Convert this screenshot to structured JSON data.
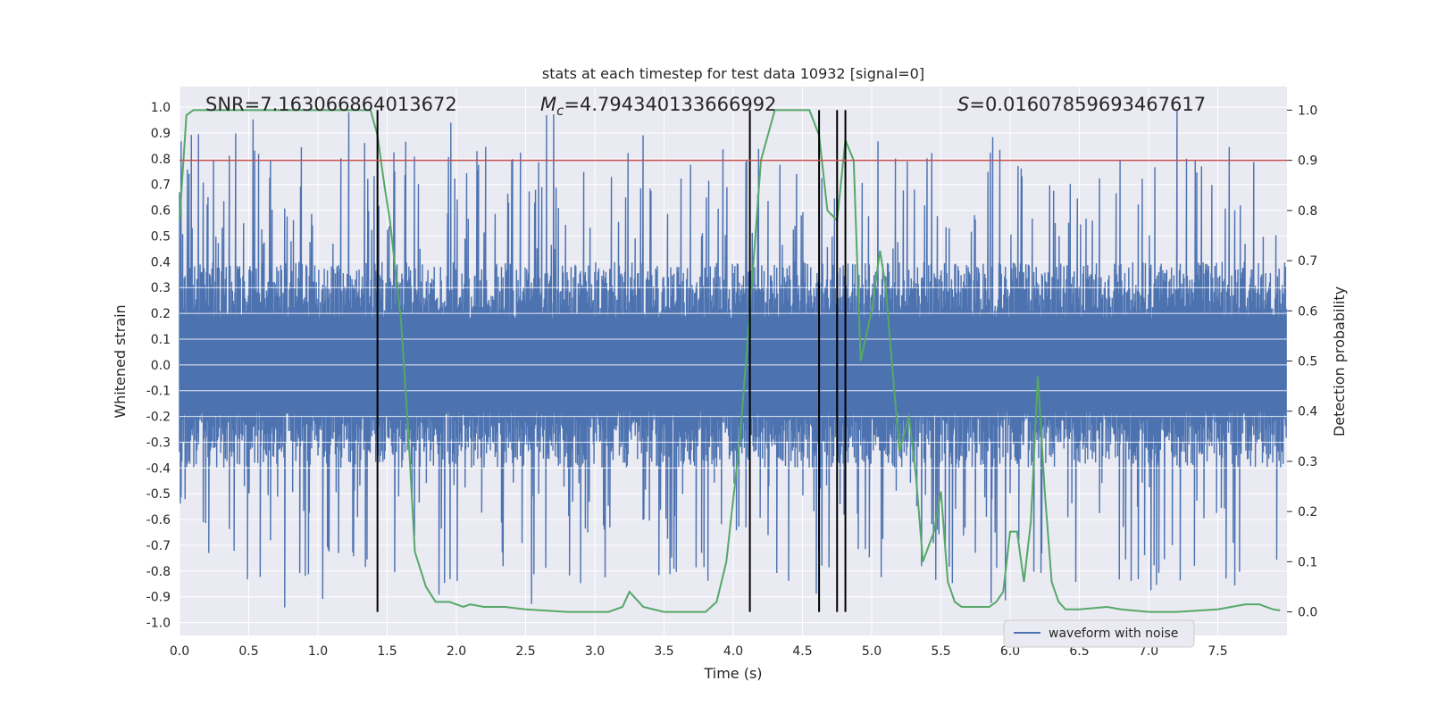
{
  "chart_data": {
    "type": "line",
    "title": "stats at each timestep for test data 10932 [signal=0]",
    "xlabel": "Time (s)",
    "ylabel": "Whitened strain",
    "ylabel_right": "Detection probability",
    "xlim": [
      0.0,
      8.0
    ],
    "ylim": [
      -1.05,
      1.08
    ],
    "ylim_right": [
      -0.047,
      1.047
    ],
    "x_ticks": [
      "0.0",
      "0.5",
      "1.0",
      "1.5",
      "2.0",
      "2.5",
      "3.0",
      "3.5",
      "4.0",
      "4.5",
      "5.0",
      "5.5",
      "6.0",
      "6.5",
      "7.0",
      "7.5"
    ],
    "y_ticks": [
      "1.0",
      "0.9",
      "0.8",
      "0.7",
      "0.6",
      "0.5",
      "0.4",
      "0.3",
      "0.2",
      "0.1",
      "0.0",
      "-0.1",
      "-0.2",
      "-0.3",
      "-0.4",
      "-0.5",
      "-0.6",
      "-0.7",
      "-0.8",
      "-0.9",
      "-1.0"
    ],
    "y_ticks_right": [
      "1.0",
      "0.9",
      "0.8",
      "0.7",
      "0.6",
      "0.5",
      "0.4",
      "0.3",
      "0.2",
      "0.1",
      "0.0"
    ],
    "annotations": {
      "snr": "SNR=7.163066864013672",
      "mc_symbol": "M",
      "mc_sub": "c",
      "mc_value": "=4.794340133666992",
      "s_symbol": "S",
      "s_value": "=0.01607859693467617"
    },
    "legend": {
      "label": "waveform with noise",
      "position": "lower-right"
    },
    "colors": {
      "waveform": "#4c72b0",
      "probability": "#55a868",
      "threshold": "#c44e52",
      "markers": "#000000",
      "background": "#eaeaf2",
      "grid": "#ffffff"
    },
    "threshold_right": 0.9,
    "vertical_markers_x": [
      1.43,
      4.12,
      4.62,
      4.75,
      4.81
    ],
    "series": [
      {
        "name": "waveform with noise",
        "type": "noise-band",
        "duration": 8.0,
        "sample_count": 1400,
        "typical_range": [
          -0.4,
          0.4
        ],
        "peak_max": 1.0,
        "peak_min": -0.95
      },
      {
        "name": "detection probability",
        "axis": "right",
        "x": [
          0.0,
          0.05,
          0.1,
          0.2,
          0.5,
          0.8,
          1.0,
          1.3,
          1.38,
          1.43,
          1.48,
          1.52,
          1.6,
          1.65,
          1.7,
          1.78,
          1.85,
          1.95,
          2.05,
          2.1,
          2.2,
          2.35,
          2.5,
          2.8,
          3.0,
          3.1,
          3.2,
          3.25,
          3.35,
          3.5,
          3.6,
          3.7,
          3.8,
          3.88,
          3.95,
          4.05,
          4.12,
          4.2,
          4.3,
          4.4,
          4.5,
          4.55,
          4.62,
          4.68,
          4.75,
          4.81,
          4.87,
          4.92,
          5.0,
          5.06,
          5.1,
          5.2,
          5.27,
          5.32,
          5.37,
          5.45,
          5.5,
          5.55,
          5.6,
          5.65,
          5.75,
          5.85,
          5.9,
          5.95,
          6.0,
          6.05,
          6.1,
          6.15,
          6.2,
          6.25,
          6.3,
          6.35,
          6.4,
          6.5,
          6.7,
          6.8,
          7.0,
          7.2,
          7.5,
          7.7,
          7.8,
          7.9,
          7.95
        ],
        "values": [
          0.78,
          0.99,
          1.0,
          1.0,
          1.0,
          1.0,
          1.0,
          1.0,
          1.0,
          0.95,
          0.85,
          0.78,
          0.58,
          0.37,
          0.12,
          0.05,
          0.02,
          0.02,
          0.01,
          0.015,
          0.01,
          0.01,
          0.005,
          0.0,
          0.0,
          0.0,
          0.01,
          0.04,
          0.01,
          0.0,
          0.0,
          0.0,
          0.0,
          0.02,
          0.1,
          0.35,
          0.6,
          0.9,
          1.0,
          1.0,
          1.0,
          1.0,
          0.95,
          0.8,
          0.78,
          0.94,
          0.9,
          0.5,
          0.6,
          0.72,
          0.65,
          0.32,
          0.39,
          0.27,
          0.1,
          0.16,
          0.24,
          0.06,
          0.02,
          0.01,
          0.01,
          0.01,
          0.02,
          0.04,
          0.16,
          0.16,
          0.06,
          0.18,
          0.47,
          0.24,
          0.06,
          0.02,
          0.005,
          0.005,
          0.01,
          0.005,
          0.0,
          0.0,
          0.005,
          0.015,
          0.015,
          0.005,
          0.003
        ]
      }
    ]
  }
}
